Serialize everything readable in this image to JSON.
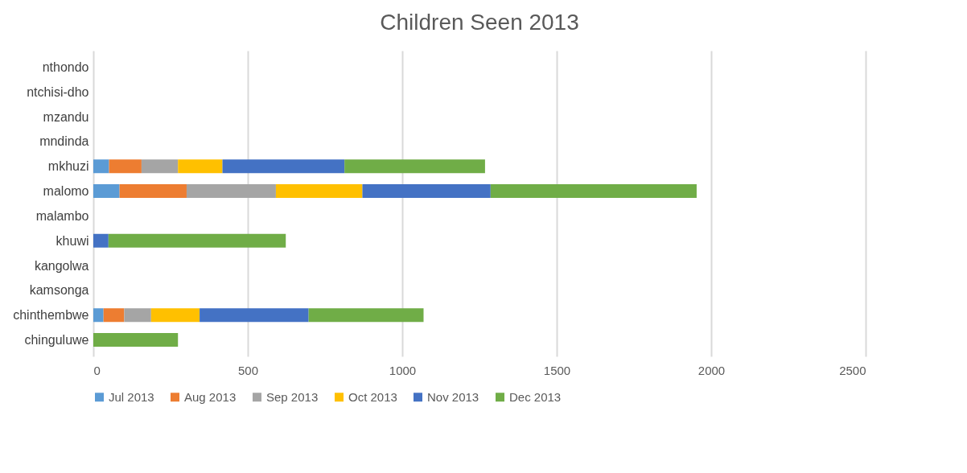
{
  "chart_data": {
    "type": "bar",
    "orientation": "horizontal",
    "stacked": true,
    "title": "Children Seen 2013",
    "categories": [
      "nthondo",
      "ntchisi-dho",
      "mzandu",
      "mndinda",
      "mkhuzi",
      "malomo",
      "malambo",
      "khuwi",
      "kangolwa",
      "kamsonga",
      "chinthembwe",
      "chinguluwe"
    ],
    "series": [
      {
        "name": "Jul 2013",
        "color": "#5b9bd5",
        "values": [
          null,
          null,
          null,
          null,
          51,
          85,
          null,
          null,
          null,
          null,
          33,
          null
        ]
      },
      {
        "name": "Aug 2013",
        "color": "#ed7d31",
        "values": [
          null,
          null,
          null,
          null,
          105,
          217,
          null,
          null,
          null,
          null,
          67,
          null
        ]
      },
      {
        "name": "Sep 2013",
        "color": "#a5a5a5",
        "values": [
          null,
          null,
          null,
          null,
          118,
          289,
          null,
          null,
          null,
          null,
          87,
          null
        ]
      },
      {
        "name": "Oct 2013",
        "color": "#ffc000",
        "values": [
          null,
          null,
          null,
          null,
          144,
          280,
          null,
          null,
          null,
          null,
          157,
          null
        ]
      },
      {
        "name": "Nov 2013",
        "color": "#4472c4",
        "values": [
          null,
          null,
          null,
          null,
          395,
          415,
          null,
          49,
          null,
          null,
          353,
          null
        ]
      },
      {
        "name": "Dec 2013",
        "color": "#70ad47",
        "values": [
          null,
          null,
          null,
          null,
          455,
          667,
          null,
          574,
          null,
          null,
          372,
          274
        ]
      }
    ],
    "xlim": [
      0,
      2500
    ],
    "xticks": [
      0,
      500,
      1000,
      1500,
      2000,
      2500
    ],
    "grid": "x",
    "legend": "bottom"
  }
}
